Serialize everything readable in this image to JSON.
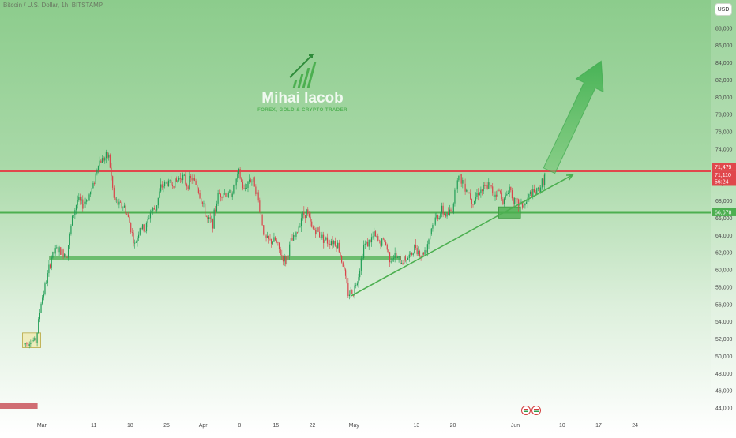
{
  "symbol_label": "Bitcoin / U.S. Dollar, 1h, BITSTAMP",
  "currency_button": "USD",
  "watermark": {
    "name": "Mihai Iacob",
    "tagline": "FOREX, GOLD & CRYPTO TRADER"
  },
  "colors": {
    "background_top": "#8ccc8c",
    "background_bottom": "#ffffff",
    "resistance": "#e0474c",
    "support": "#4caf50",
    "candle_up": "#26a65b",
    "candle_down": "#e0474c",
    "arrow": "#5cbf5c"
  },
  "chart_data": {
    "type": "candlestick",
    "x_axis": {
      "tick_labels": [
        "Mar",
        "11",
        "18",
        "25",
        "Apr",
        "8",
        "15",
        "22",
        "May",
        "13",
        "20",
        "Jun",
        "10",
        "17",
        "24"
      ],
      "tick_days": [
        29,
        39,
        46,
        53,
        60,
        67,
        74,
        81,
        89,
        101,
        108,
        120,
        129,
        136,
        143
      ],
      "start": "Feb 25",
      "end": "Jul 8"
    },
    "y_axis": {
      "range": [
        43500,
        90000
      ],
      "ticks": [
        44000,
        46000,
        48000,
        50000,
        52000,
        54000,
        56000,
        58000,
        60000,
        62000,
        64000,
        66000,
        68000,
        70000,
        72000,
        74000,
        76000,
        78000,
        80000,
        82000,
        84000,
        86000,
        88000
      ],
      "tick_labels": [
        "44,000",
        "46,000",
        "48,000",
        "50,000",
        "52,000",
        "54,000",
        "56,000",
        "58,000",
        "60,000",
        "62,000",
        "64,000",
        "66,000",
        "68,000",
        "70,000",
        "72,000",
        "74,000",
        "76,000",
        "78,000",
        "80,000",
        "82,000",
        "84,000",
        "86,000",
        "88,000"
      ]
    },
    "price_path": [
      {
        "d": 25.5,
        "p": 51300
      },
      {
        "d": 27,
        "p": 51900
      },
      {
        "d": 28,
        "p": 51700
      },
      {
        "d": 29,
        "p": 56300
      },
      {
        "d": 30,
        "p": 58700
      },
      {
        "d": 31,
        "p": 61500
      },
      {
        "d": 32,
        "p": 62400
      },
      {
        "d": 33,
        "p": 62000
      },
      {
        "d": 34,
        "p": 61900
      },
      {
        "d": 35,
        "p": 66000
      },
      {
        "d": 36,
        "p": 68100
      },
      {
        "d": 37,
        "p": 67500
      },
      {
        "d": 38,
        "p": 68400
      },
      {
        "d": 39,
        "p": 69700
      },
      {
        "d": 40,
        "p": 72500
      },
      {
        "d": 41,
        "p": 72900
      },
      {
        "d": 42,
        "p": 73200
      },
      {
        "d": 43,
        "p": 68200
      },
      {
        "d": 44,
        "p": 67500
      },
      {
        "d": 45,
        "p": 67300
      },
      {
        "d": 46,
        "p": 65500
      },
      {
        "d": 47,
        "p": 62800
      },
      {
        "d": 48,
        "p": 65000
      },
      {
        "d": 49,
        "p": 64600
      },
      {
        "d": 50,
        "p": 66800
      },
      {
        "d": 51,
        "p": 67100
      },
      {
        "d": 52,
        "p": 69500
      },
      {
        "d": 53,
        "p": 70100
      },
      {
        "d": 54,
        "p": 70000
      },
      {
        "d": 55,
        "p": 70200
      },
      {
        "d": 56,
        "p": 71000
      },
      {
        "d": 57,
        "p": 69900
      },
      {
        "d": 58,
        "p": 70600
      },
      {
        "d": 59,
        "p": 69700
      },
      {
        "d": 60,
        "p": 67600
      },
      {
        "d": 61,
        "p": 65700
      },
      {
        "d": 62,
        "p": 65500
      },
      {
        "d": 63,
        "p": 68700
      },
      {
        "d": 64,
        "p": 69000
      },
      {
        "d": 65,
        "p": 68600
      },
      {
        "d": 66,
        "p": 69400
      },
      {
        "d": 67,
        "p": 71200
      },
      {
        "d": 68,
        "p": 69100
      },
      {
        "d": 69,
        "p": 70600
      },
      {
        "d": 70,
        "p": 70100
      },
      {
        "d": 71,
        "p": 67200
      },
      {
        "d": 72,
        "p": 63600
      },
      {
        "d": 73,
        "p": 63300
      },
      {
        "d": 74,
        "p": 63400
      },
      {
        "d": 75,
        "p": 61900
      },
      {
        "d": 76,
        "p": 60900
      },
      {
        "d": 77,
        "p": 63200
      },
      {
        "d": 78,
        "p": 64000
      },
      {
        "d": 79,
        "p": 66200
      },
      {
        "d": 80,
        "p": 66800
      },
      {
        "d": 81,
        "p": 64800
      },
      {
        "d": 82,
        "p": 64500
      },
      {
        "d": 83,
        "p": 63800
      },
      {
        "d": 84,
        "p": 63300
      },
      {
        "d": 85,
        "p": 63400
      },
      {
        "d": 86,
        "p": 62900
      },
      {
        "d": 87,
        "p": 60600
      },
      {
        "d": 88,
        "p": 57300
      },
      {
        "d": 89,
        "p": 57500
      },
      {
        "d": 90,
        "p": 59500
      },
      {
        "d": 91,
        "p": 62800
      },
      {
        "d": 92,
        "p": 63200
      },
      {
        "d": 93,
        "p": 64000
      },
      {
        "d": 94,
        "p": 63100
      },
      {
        "d": 95,
        "p": 63400
      },
      {
        "d": 96,
        "p": 61400
      },
      {
        "d": 97,
        "p": 61600
      },
      {
        "d": 98,
        "p": 60900
      },
      {
        "d": 99,
        "p": 61300
      },
      {
        "d": 100,
        "p": 61600
      },
      {
        "d": 101,
        "p": 62800
      },
      {
        "d": 102,
        "p": 61600
      },
      {
        "d": 103,
        "p": 62500
      },
      {
        "d": 104,
        "p": 64900
      },
      {
        "d": 105,
        "p": 66100
      },
      {
        "d": 106,
        "p": 66800
      },
      {
        "d": 107,
        "p": 66300
      },
      {
        "d": 108,
        "p": 67000
      },
      {
        "d": 109,
        "p": 70900
      },
      {
        "d": 110,
        "p": 70300
      },
      {
        "d": 111,
        "p": 69200
      },
      {
        "d": 112,
        "p": 67900
      },
      {
        "d": 113,
        "p": 69100
      },
      {
        "d": 114,
        "p": 69300
      },
      {
        "d": 115,
        "p": 69800
      },
      {
        "d": 116,
        "p": 68800
      },
      {
        "d": 117,
        "p": 69100
      },
      {
        "d": 118,
        "p": 68000
      },
      {
        "d": 119,
        "p": 69600
      },
      {
        "d": 120,
        "p": 67800
      },
      {
        "d": 121,
        "p": 67600
      },
      {
        "d": 122,
        "p": 67500
      },
      {
        "d": 123,
        "p": 68800
      },
      {
        "d": 124,
        "p": 68900
      },
      {
        "d": 125,
        "p": 69700
      },
      {
        "d": 126,
        "p": 71100
      }
    ],
    "levels": {
      "resistance": 71479,
      "support": 66678,
      "lower_zone": 61400,
      "labels": {
        "resistance": "71,479",
        "last_price": "71,110",
        "countdown": "56:24",
        "support": "66,678"
      }
    },
    "trendline": {
      "from": {
        "d": 88.5,
        "p": 57000
      },
      "to": {
        "d": 131,
        "p": 71000
      }
    },
    "projection_arrow": {
      "from": {
        "d": 126.5,
        "p": 71500
      },
      "to": {
        "d": 136.5,
        "p": 84200
      }
    },
    "zones": [
      {
        "from": {
          "d": 25.3,
          "p": 51000
        },
        "to": {
          "d": 28.8,
          "p": 52700
        }
      },
      {
        "from": {
          "d": 116.8,
          "p": 66000
        },
        "to": {
          "d": 121,
          "p": 67300
        }
      }
    ],
    "bottom_marker": {
      "from": "Feb 25",
      "to": "Mar 1"
    }
  }
}
